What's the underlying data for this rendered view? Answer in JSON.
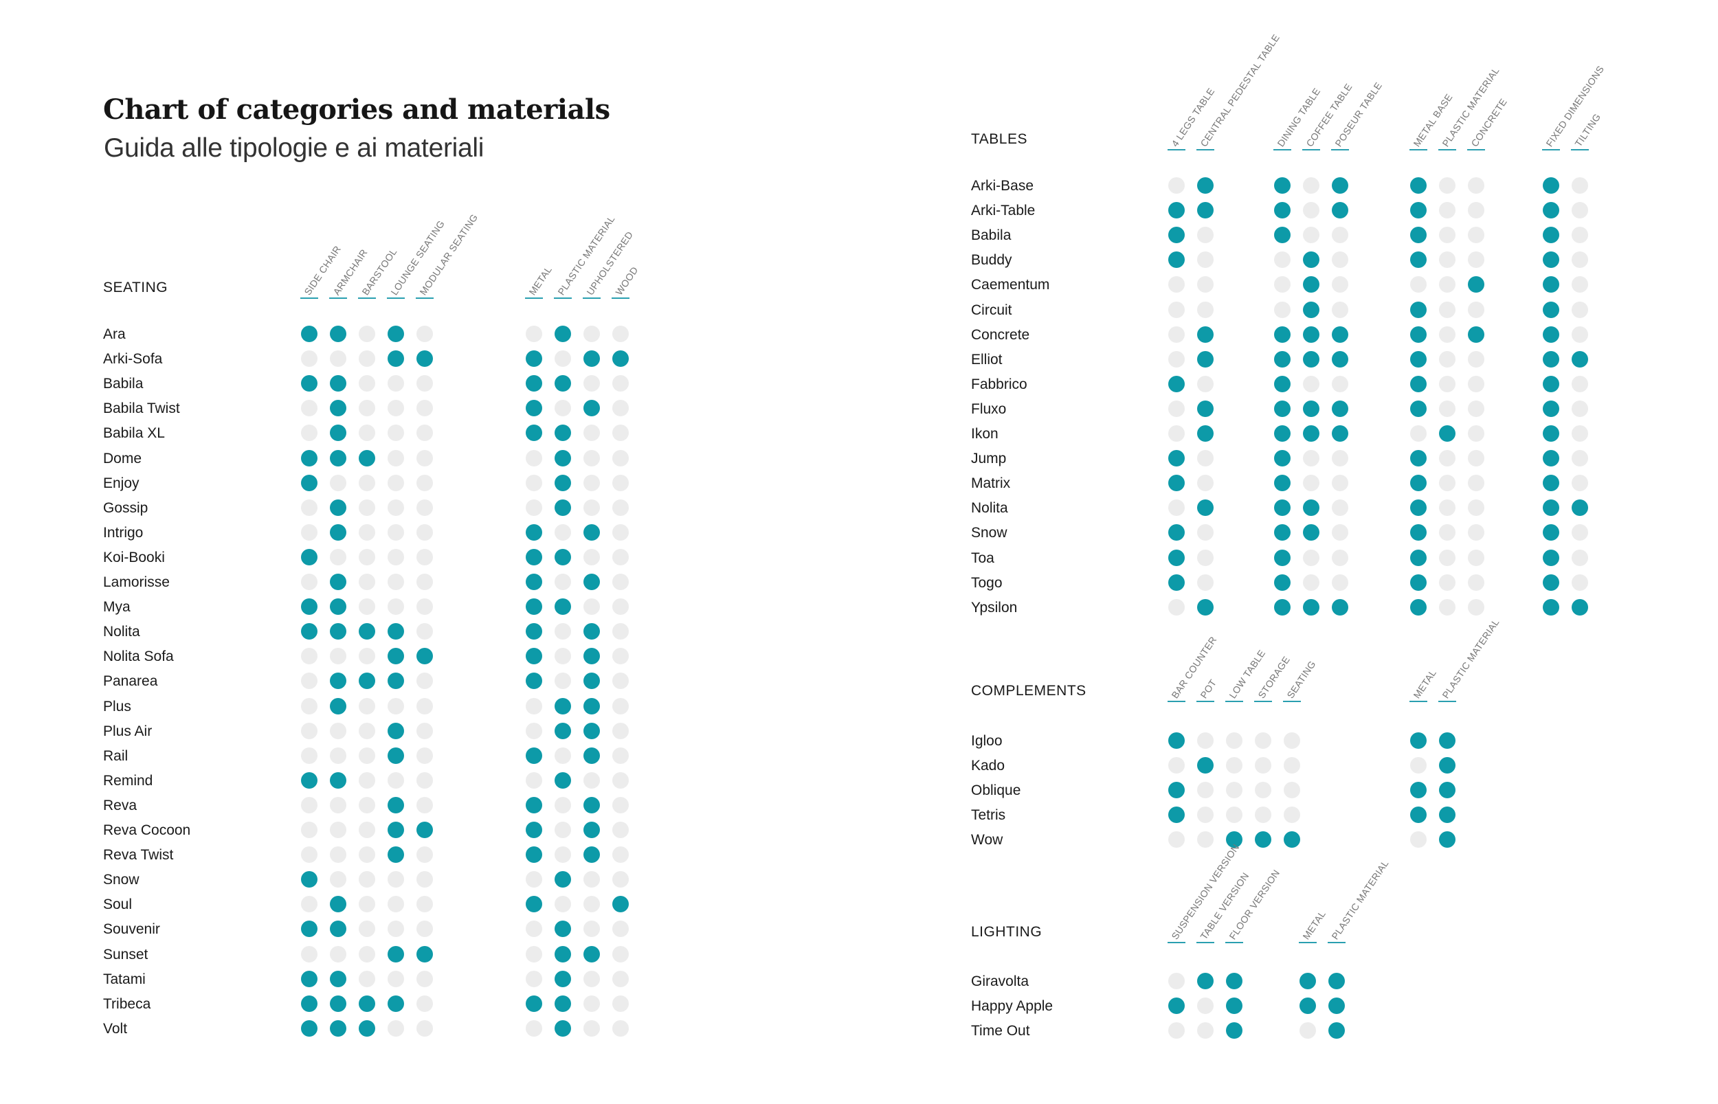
{
  "header": {
    "title": "Chart of categories and materials",
    "subtitle": "Guida alle tipologie e ai materiali"
  },
  "colors": {
    "filled": "#0d9aa8",
    "empty": "#ececec",
    "rule": "#2a9fb0"
  },
  "chart_data": [
    {
      "type": "table",
      "title": "SEATING",
      "groups": [
        [
          "SIDE CHAIR",
          "ARMCHAIR",
          "BARSTOOL",
          "LOUNGE SEATING",
          "MODULAR SEATING"
        ],
        [
          "METAL",
          "PLASTIC MATERIAL",
          "UPHOLSTERED",
          "WOOD"
        ]
      ],
      "rows": [
        {
          "label": "Ara",
          "values": [
            1,
            1,
            0,
            1,
            0,
            0,
            1,
            0,
            0
          ]
        },
        {
          "label": "Arki-Sofa",
          "values": [
            0,
            0,
            0,
            1,
            1,
            1,
            0,
            1,
            1
          ]
        },
        {
          "label": "Babila",
          "values": [
            1,
            1,
            0,
            0,
            0,
            1,
            1,
            0,
            0
          ]
        },
        {
          "label": "Babila Twist",
          "values": [
            0,
            1,
            0,
            0,
            0,
            1,
            0,
            1,
            0
          ]
        },
        {
          "label": "Babila XL",
          "values": [
            0,
            1,
            0,
            0,
            0,
            1,
            1,
            0,
            0
          ]
        },
        {
          "label": "Dome",
          "values": [
            1,
            1,
            1,
            0,
            0,
            0,
            1,
            0,
            0
          ]
        },
        {
          "label": "Enjoy",
          "values": [
            1,
            0,
            0,
            0,
            0,
            0,
            1,
            0,
            0
          ]
        },
        {
          "label": "Gossip",
          "values": [
            0,
            1,
            0,
            0,
            0,
            0,
            1,
            0,
            0
          ]
        },
        {
          "label": "Intrigo",
          "values": [
            0,
            1,
            0,
            0,
            0,
            1,
            0,
            1,
            0
          ]
        },
        {
          "label": "Koi-Booki",
          "values": [
            1,
            0,
            0,
            0,
            0,
            1,
            1,
            0,
            0
          ]
        },
        {
          "label": "Lamorisse",
          "values": [
            0,
            1,
            0,
            0,
            0,
            1,
            0,
            1,
            0
          ]
        },
        {
          "label": "Mya",
          "values": [
            1,
            1,
            0,
            0,
            0,
            1,
            1,
            0,
            0
          ]
        },
        {
          "label": "Nolita",
          "values": [
            1,
            1,
            1,
            1,
            0,
            1,
            0,
            1,
            0
          ]
        },
        {
          "label": "Nolita Sofa",
          "values": [
            0,
            0,
            0,
            1,
            1,
            1,
            0,
            1,
            0
          ]
        },
        {
          "label": "Panarea",
          "values": [
            0,
            1,
            1,
            1,
            0,
            1,
            0,
            1,
            0
          ]
        },
        {
          "label": "Plus",
          "values": [
            0,
            1,
            0,
            0,
            0,
            0,
            1,
            1,
            0
          ]
        },
        {
          "label": "Plus Air",
          "values": [
            0,
            0,
            0,
            1,
            0,
            0,
            1,
            1,
            0
          ]
        },
        {
          "label": "Rail",
          "values": [
            0,
            0,
            0,
            1,
            0,
            1,
            0,
            1,
            0
          ]
        },
        {
          "label": "Remind",
          "values": [
            1,
            1,
            0,
            0,
            0,
            0,
            1,
            0,
            0
          ]
        },
        {
          "label": "Reva",
          "values": [
            0,
            0,
            0,
            1,
            0,
            1,
            0,
            1,
            0
          ]
        },
        {
          "label": "Reva Cocoon",
          "values": [
            0,
            0,
            0,
            1,
            1,
            1,
            0,
            1,
            0
          ]
        },
        {
          "label": "Reva Twist",
          "values": [
            0,
            0,
            0,
            1,
            0,
            1,
            0,
            1,
            0
          ]
        },
        {
          "label": "Snow",
          "values": [
            1,
            0,
            0,
            0,
            0,
            0,
            1,
            0,
            0
          ]
        },
        {
          "label": "Soul",
          "values": [
            0,
            1,
            0,
            0,
            0,
            1,
            0,
            0,
            1
          ]
        },
        {
          "label": "Souvenir",
          "values": [
            1,
            1,
            0,
            0,
            0,
            0,
            1,
            0,
            0
          ]
        },
        {
          "label": "Sunset",
          "values": [
            0,
            0,
            0,
            1,
            1,
            0,
            1,
            1,
            0
          ]
        },
        {
          "label": "Tatami",
          "values": [
            1,
            1,
            0,
            0,
            0,
            0,
            1,
            0,
            0
          ]
        },
        {
          "label": "Tribeca",
          "values": [
            1,
            1,
            1,
            1,
            0,
            1,
            1,
            0,
            0
          ]
        },
        {
          "label": "Volt",
          "values": [
            1,
            1,
            1,
            0,
            0,
            0,
            1,
            0,
            0
          ]
        }
      ]
    },
    {
      "type": "table",
      "title": "TABLES",
      "groups": [
        [
          "4 LEGS TABLE",
          "CENTRAL PEDESTAL TABLE"
        ],
        [
          "DINING TABLE",
          "COFFEE TABLE",
          "POSEUR TABLE"
        ],
        [
          "METAL BASE",
          "PLASTIC MATERIAL",
          "CONCRETE"
        ],
        [
          "FIXED DIMENSIONS",
          "TILTING"
        ]
      ],
      "rows": [
        {
          "label": "Arki-Base",
          "values": [
            0,
            1,
            1,
            0,
            1,
            1,
            0,
            0,
            1,
            0
          ]
        },
        {
          "label": "Arki-Table",
          "values": [
            1,
            1,
            1,
            0,
            1,
            1,
            0,
            0,
            1,
            0
          ]
        },
        {
          "label": "Babila",
          "values": [
            1,
            0,
            1,
            0,
            0,
            1,
            0,
            0,
            1,
            0
          ]
        },
        {
          "label": "Buddy",
          "values": [
            1,
            0,
            0,
            1,
            0,
            1,
            0,
            0,
            1,
            0
          ]
        },
        {
          "label": "Caementum",
          "values": [
            0,
            0,
            0,
            1,
            0,
            0,
            0,
            1,
            1,
            0
          ]
        },
        {
          "label": "Circuit",
          "values": [
            0,
            0,
            0,
            1,
            0,
            1,
            0,
            0,
            1,
            0
          ]
        },
        {
          "label": "Concrete",
          "values": [
            0,
            1,
            1,
            1,
            1,
            1,
            0,
            1,
            1,
            0
          ]
        },
        {
          "label": "Elliot",
          "values": [
            0,
            1,
            1,
            1,
            1,
            1,
            0,
            0,
            1,
            1
          ]
        },
        {
          "label": "Fabbrico",
          "values": [
            1,
            0,
            1,
            0,
            0,
            1,
            0,
            0,
            1,
            0
          ]
        },
        {
          "label": "Fluxo",
          "values": [
            0,
            1,
            1,
            1,
            1,
            1,
            0,
            0,
            1,
            0
          ]
        },
        {
          "label": "Ikon",
          "values": [
            0,
            1,
            1,
            1,
            1,
            0,
            1,
            0,
            1,
            0
          ]
        },
        {
          "label": "Jump",
          "values": [
            1,
            0,
            1,
            0,
            0,
            1,
            0,
            0,
            1,
            0
          ]
        },
        {
          "label": "Matrix",
          "values": [
            1,
            0,
            1,
            0,
            0,
            1,
            0,
            0,
            1,
            0
          ]
        },
        {
          "label": "Nolita",
          "values": [
            0,
            1,
            1,
            1,
            0,
            1,
            0,
            0,
            1,
            1
          ]
        },
        {
          "label": "Snow",
          "values": [
            1,
            0,
            1,
            1,
            0,
            1,
            0,
            0,
            1,
            0
          ]
        },
        {
          "label": "Toa",
          "values": [
            1,
            0,
            1,
            0,
            0,
            1,
            0,
            0,
            1,
            0
          ]
        },
        {
          "label": "Togo",
          "values": [
            1,
            0,
            1,
            0,
            0,
            1,
            0,
            0,
            1,
            0
          ]
        },
        {
          "label": "Ypsilon",
          "values": [
            0,
            1,
            1,
            1,
            1,
            1,
            0,
            0,
            1,
            1
          ]
        }
      ]
    },
    {
      "type": "table",
      "title": "COMPLEMENTS",
      "groups": [
        [
          "BAR COUNTER",
          "POT",
          "LOW TABLE",
          "STORAGE",
          "SEATING"
        ],
        [
          "METAL",
          "PLASTIC MATERIAL"
        ]
      ],
      "rows": [
        {
          "label": "Igloo",
          "values": [
            1,
            0,
            0,
            0,
            0,
            1,
            1
          ]
        },
        {
          "label": "Kado",
          "values": [
            0,
            1,
            0,
            0,
            0,
            0,
            1
          ]
        },
        {
          "label": "Oblique",
          "values": [
            1,
            0,
            0,
            0,
            0,
            1,
            1
          ]
        },
        {
          "label": "Tetris",
          "values": [
            1,
            0,
            0,
            0,
            0,
            1,
            1
          ]
        },
        {
          "label": "Wow",
          "values": [
            0,
            0,
            1,
            1,
            1,
            0,
            1
          ]
        }
      ]
    },
    {
      "type": "table",
      "title": "LIGHTING",
      "groups": [
        [
          "SUSPENSION VERSION",
          "TABLE VERSION",
          "FLOOR VERSION"
        ],
        [
          "METAL",
          "PLASTIC MATERIAL"
        ]
      ],
      "rows": [
        {
          "label": "Giravolta",
          "values": [
            0,
            1,
            1,
            1,
            1
          ]
        },
        {
          "label": "Happy Apple",
          "values": [
            1,
            0,
            1,
            1,
            1
          ]
        },
        {
          "label": "Time Out",
          "values": [
            0,
            0,
            1,
            0,
            1
          ]
        }
      ]
    }
  ]
}
